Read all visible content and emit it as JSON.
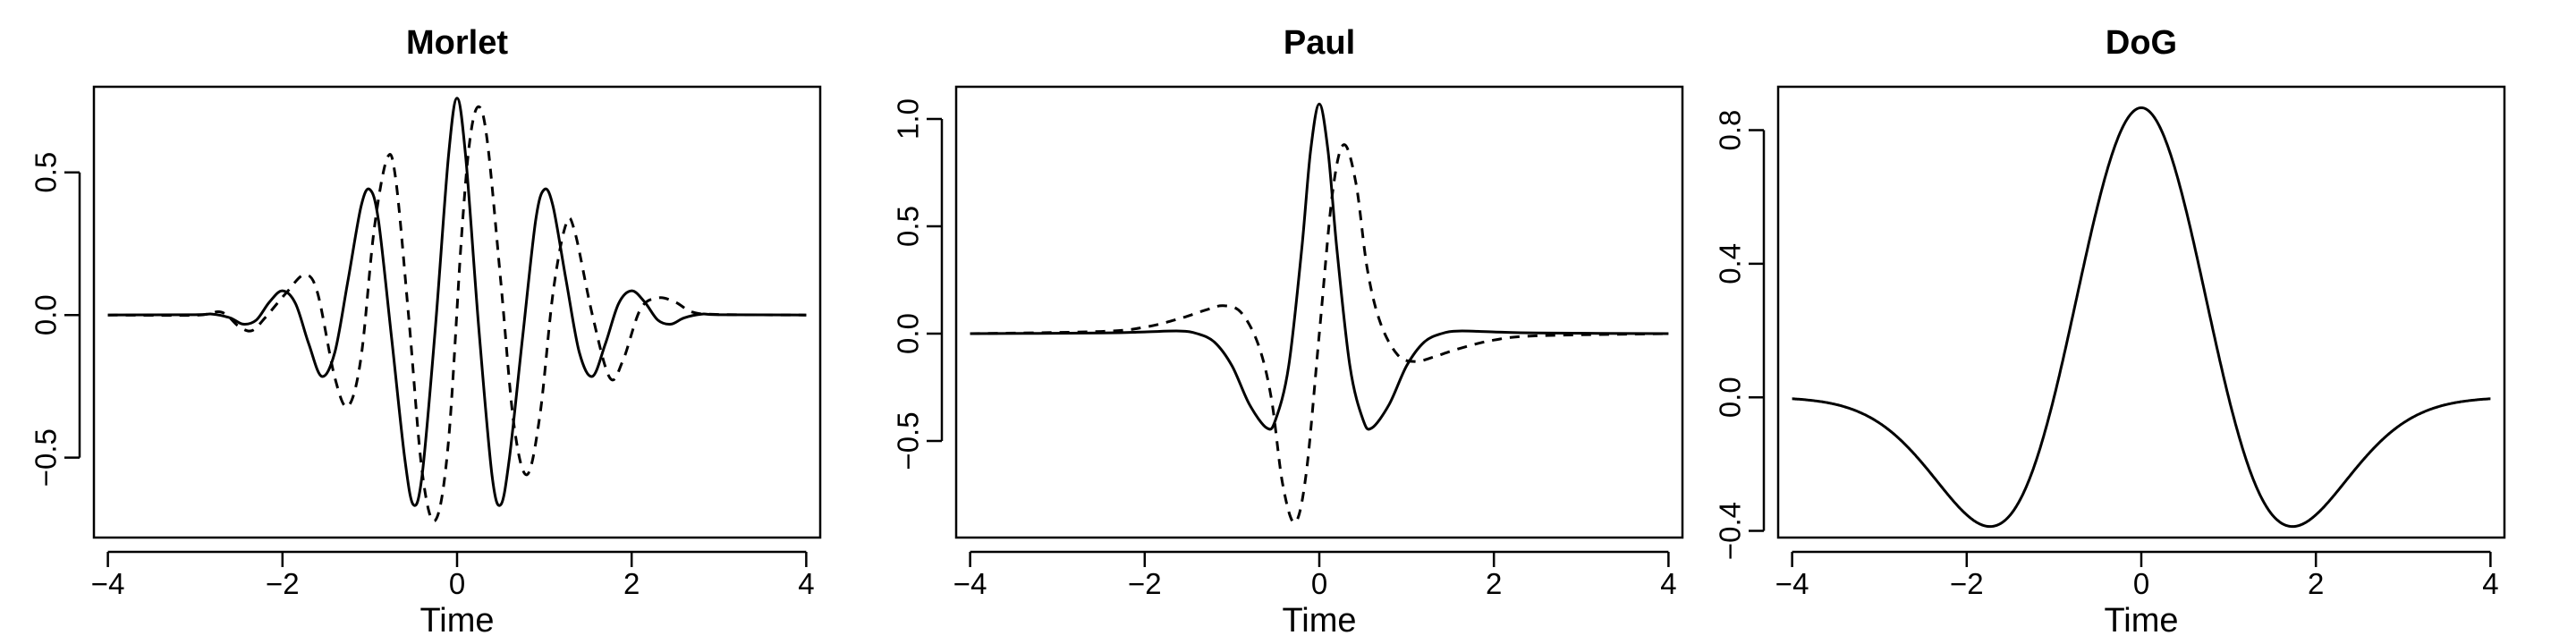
{
  "chart_data": [
    {
      "type": "line",
      "title": "Morlet",
      "xlabel": "Time",
      "ylabel": "",
      "xlim": [
        -4.16,
        4.16
      ],
      "ylim": [
        -0.78,
        0.8
      ],
      "xticks": [
        -4,
        -2,
        0,
        2,
        4
      ],
      "xtick_labels": [
        "−4",
        "−2",
        "0",
        "2",
        "4"
      ],
      "yticks": [
        -0.5,
        0.0,
        0.5
      ],
      "ytick_labels": [
        "−0.5",
        "0.0",
        "0.5"
      ],
      "grid": false,
      "legend": "none",
      "series": [
        {
          "style": "solid",
          "values": [
            [
              -4.0,
              0.0
            ],
            [
              -3.0,
              0.001
            ],
            [
              -2.8,
              0.003
            ],
            [
              -2.6,
              -0.01
            ],
            [
              -2.45,
              -0.032
            ],
            [
              -2.3,
              -0.018
            ],
            [
              -2.15,
              0.045
            ],
            [
              -2.0,
              0.085
            ],
            [
              -1.85,
              0.04
            ],
            [
              -1.7,
              -0.1
            ],
            [
              -1.55,
              -0.215
            ],
            [
              -1.4,
              -0.13
            ],
            [
              -1.25,
              0.12
            ],
            [
              -1.1,
              0.38
            ],
            [
              -1.0,
              0.44
            ],
            [
              -0.9,
              0.33
            ],
            [
              -0.75,
              -0.08
            ],
            [
              -0.6,
              -0.5
            ],
            [
              -0.5,
              -0.665
            ],
            [
              -0.4,
              -0.56
            ],
            [
              -0.25,
              -0.05
            ],
            [
              -0.1,
              0.55
            ],
            [
              0.0,
              0.76
            ],
            [
              0.1,
              0.55
            ],
            [
              0.25,
              -0.05
            ],
            [
              0.4,
              -0.56
            ],
            [
              0.5,
              -0.665
            ],
            [
              0.6,
              -0.5
            ],
            [
              0.75,
              -0.08
            ],
            [
              0.9,
              0.33
            ],
            [
              1.0,
              0.44
            ],
            [
              1.1,
              0.38
            ],
            [
              1.25,
              0.12
            ],
            [
              1.4,
              -0.13
            ],
            [
              1.55,
              -0.215
            ],
            [
              1.7,
              -0.1
            ],
            [
              1.85,
              0.04
            ],
            [
              2.0,
              0.085
            ],
            [
              2.15,
              0.045
            ],
            [
              2.3,
              -0.018
            ],
            [
              2.45,
              -0.032
            ],
            [
              2.6,
              -0.01
            ],
            [
              2.8,
              0.003
            ],
            [
              3.0,
              0.001
            ],
            [
              4.0,
              0.0
            ]
          ]
        },
        {
          "style": "dashed",
          "values": [
            [
              -4.0,
              0.0
            ],
            [
              -3.0,
              -0.001
            ],
            [
              -2.7,
              0.01
            ],
            [
              -2.5,
              -0.04
            ],
            [
              -2.35,
              -0.055
            ],
            [
              -2.2,
              -0.01
            ],
            [
              -1.95,
              0.08
            ],
            [
              -1.75,
              0.14
            ],
            [
              -1.6,
              0.08
            ],
            [
              -1.4,
              -0.22
            ],
            [
              -1.25,
              -0.32
            ],
            [
              -1.1,
              -0.15
            ],
            [
              -0.95,
              0.3
            ],
            [
              -0.8,
              0.55
            ],
            [
              -0.7,
              0.47
            ],
            [
              -0.55,
              -0.02
            ],
            [
              -0.4,
              -0.55
            ],
            [
              -0.25,
              -0.72
            ],
            [
              -0.1,
              -0.45
            ],
            [
              0.05,
              0.27
            ],
            [
              0.15,
              0.62
            ],
            [
              0.25,
              0.73
            ],
            [
              0.35,
              0.6
            ],
            [
              0.5,
              0.12
            ],
            [
              0.65,
              -0.38
            ],
            [
              0.8,
              -0.56
            ],
            [
              0.95,
              -0.35
            ],
            [
              1.1,
              0.08
            ],
            [
              1.25,
              0.32
            ],
            [
              1.35,
              0.29
            ],
            [
              1.55,
              0.0
            ],
            [
              1.75,
              -0.22
            ],
            [
              1.9,
              -0.16
            ],
            [
              2.1,
              0.02
            ],
            [
              2.3,
              0.06
            ],
            [
              2.5,
              0.045
            ],
            [
              2.7,
              0.01
            ],
            [
              3.0,
              0.002
            ],
            [
              4.0,
              0.0
            ]
          ]
        }
      ]
    },
    {
      "type": "line",
      "title": "Paul",
      "xlabel": "Time",
      "ylabel": "",
      "xlim": [
        -4.16,
        4.16
      ],
      "ylim": [
        -0.95,
        1.15
      ],
      "xticks": [
        -4,
        -2,
        0,
        2,
        4
      ],
      "xtick_labels": [
        "−4",
        "−2",
        "0",
        "2",
        "4"
      ],
      "yticks": [
        -0.5,
        0.0,
        0.5,
        1.0
      ],
      "ytick_labels": [
        "−0.5",
        "0.0",
        "0.5",
        "1.0"
      ],
      "grid": false,
      "legend": "none",
      "series": [
        {
          "style": "solid",
          "values": [
            [
              -4.0,
              0.0
            ],
            [
              -2.5,
              0.003
            ],
            [
              -2.0,
              0.008
            ],
            [
              -1.6,
              0.012
            ],
            [
              -1.4,
              0.0
            ],
            [
              -1.2,
              -0.04
            ],
            [
              -1.0,
              -0.15
            ],
            [
              -0.8,
              -0.33
            ],
            [
              -0.6,
              -0.44
            ],
            [
              -0.5,
              -0.4
            ],
            [
              -0.35,
              -0.15
            ],
            [
              -0.2,
              0.4
            ],
            [
              -0.1,
              0.85
            ],
            [
              0.0,
              1.07
            ],
            [
              0.1,
              0.85
            ],
            [
              0.2,
              0.4
            ],
            [
              0.35,
              -0.15
            ],
            [
              0.5,
              -0.4
            ],
            [
              0.6,
              -0.44
            ],
            [
              0.8,
              -0.33
            ],
            [
              1.0,
              -0.15
            ],
            [
              1.2,
              -0.04
            ],
            [
              1.4,
              0.0
            ],
            [
              1.6,
              0.012
            ],
            [
              2.0,
              0.008
            ],
            [
              2.5,
              0.003
            ],
            [
              4.0,
              0.0
            ]
          ]
        },
        {
          "style": "dashed",
          "values": [
            [
              -4.0,
              0.0
            ],
            [
              -2.5,
              0.01
            ],
            [
              -2.0,
              0.03
            ],
            [
              -1.6,
              0.07
            ],
            [
              -1.3,
              0.11
            ],
            [
              -1.1,
              0.13
            ],
            [
              -0.9,
              0.1
            ],
            [
              -0.7,
              -0.05
            ],
            [
              -0.55,
              -0.3
            ],
            [
              -0.42,
              -0.7
            ],
            [
              -0.28,
              -0.88
            ],
            [
              -0.15,
              -0.65
            ],
            [
              0.0,
              0.0
            ],
            [
              0.15,
              0.65
            ],
            [
              0.28,
              0.88
            ],
            [
              0.42,
              0.7
            ],
            [
              0.55,
              0.3
            ],
            [
              0.7,
              0.05
            ],
            [
              0.9,
              -0.1
            ],
            [
              1.1,
              -0.13
            ],
            [
              1.3,
              -0.11
            ],
            [
              1.6,
              -0.07
            ],
            [
              2.0,
              -0.03
            ],
            [
              2.5,
              -0.01
            ],
            [
              4.0,
              0.0
            ]
          ]
        }
      ]
    },
    {
      "type": "line",
      "title": "DoG",
      "xlabel": "Time",
      "ylabel": "",
      "xlim": [
        -4.16,
        4.16
      ],
      "ylim": [
        -0.42,
        0.93
      ],
      "xticks": [
        -4,
        -2,
        0,
        2,
        4
      ],
      "xtick_labels": [
        "−4",
        "−2",
        "0",
        "2",
        "4"
      ],
      "yticks": [
        -0.4,
        0.0,
        0.4,
        0.8
      ],
      "ytick_labels": [
        "−0.4",
        "0.0",
        "0.4",
        "0.8"
      ],
      "grid": false,
      "legend": "none",
      "series": [
        {
          "style": "solid",
          "function": "0.867*(1 - t^2)*exp(-t^2/2)",
          "tmin": -4,
          "tmax": 4
        }
      ]
    }
  ]
}
